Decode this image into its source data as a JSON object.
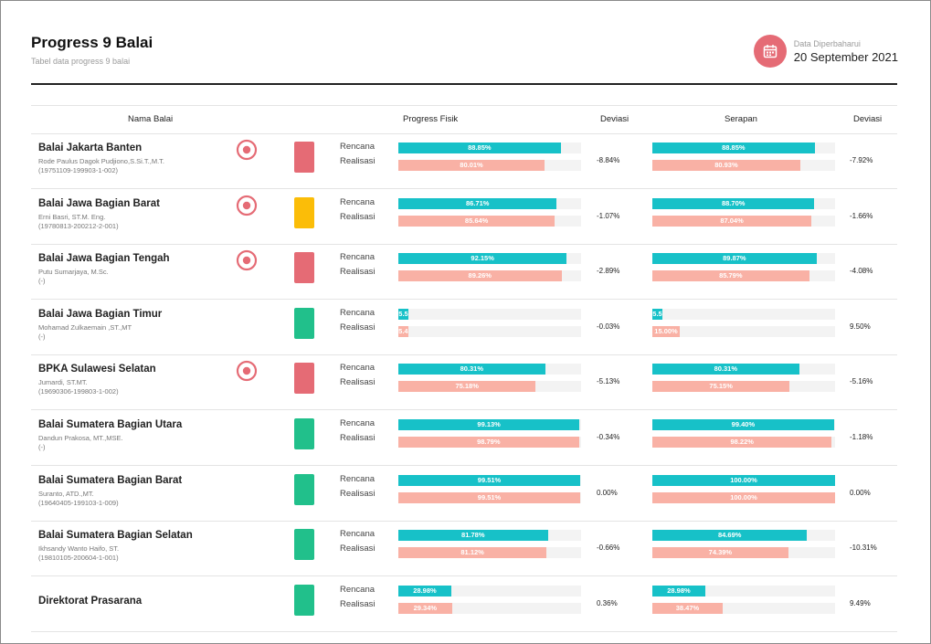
{
  "header": {
    "title": "Progress 9 Balai",
    "subtitle": "Tabel data progress 9 balai",
    "updated_label": "Data Diperbaharui",
    "updated_date": "20 September 2021",
    "calendar_icon": "calendar-icon"
  },
  "columns": {
    "nama_balai": "Nama Balai",
    "progress_fisik": "Progress Fisik",
    "deviasi_fisik": "Deviasi",
    "serapan": "Serapan",
    "deviasi_serapan": "Deviasi"
  },
  "labels": {
    "rencana": "Rencana",
    "realisasi": "Realisasi"
  },
  "colors": {
    "red": "#e56b75",
    "yellow": "#fbbd08",
    "green": "#21c08b",
    "rencana": "#17c1c8",
    "realisasi": "#f9b1a5"
  },
  "rows": [
    {
      "name": "Balai Jakarta Banten",
      "pic": "Rode Paulus Dagok Pudjiono,S.Si.T.,M.T.",
      "nip": "(19751109-199903-1-002)",
      "flag": true,
      "status": "red",
      "fisik_rencana": 88.85,
      "fisik_rencana_label": "88.85%",
      "fisik_realisasi": 80.01,
      "fisik_realisasi_label": "80.01%",
      "fisik_deviasi": "-8.84%",
      "serapan_rencana": 88.85,
      "serapan_rencana_label": "88.85%",
      "serapan_realisasi": 80.93,
      "serapan_realisasi_label": "80.93%",
      "serapan_deviasi": "-7.92%"
    },
    {
      "name": "Balai Jawa Bagian Barat",
      "pic": "Erni Basri, ST.M. Eng.",
      "nip": "(19780813-200212-2-001)",
      "flag": true,
      "status": "yellow",
      "fisik_rencana": 86.71,
      "fisik_rencana_label": "86.71%",
      "fisik_realisasi": 85.64,
      "fisik_realisasi_label": "85.64%",
      "fisik_deviasi": "-1.07%",
      "serapan_rencana": 88.7,
      "serapan_rencana_label": "88.70%",
      "serapan_realisasi": 87.04,
      "serapan_realisasi_label": "87.04%",
      "serapan_deviasi": "-1.66%"
    },
    {
      "name": "Balai Jawa Bagian Tengah",
      "pic": "Putu Sumarjaya, M.Sc.",
      "nip": "(-)",
      "flag": true,
      "status": "red",
      "fisik_rencana": 92.15,
      "fisik_rencana_label": "92.15%",
      "fisik_realisasi": 89.26,
      "fisik_realisasi_label": "89.26%",
      "fisik_deviasi": "-2.89%",
      "serapan_rencana": 89.87,
      "serapan_rencana_label": "89.87%",
      "serapan_realisasi": 85.79,
      "serapan_realisasi_label": "85.79%",
      "serapan_deviasi": "-4.08%"
    },
    {
      "name": "Balai Jawa Bagian Timur",
      "pic": "Mohamad Zulkaemain ,ST.,MT",
      "nip": "(-)",
      "flag": false,
      "status": "green",
      "fisik_rencana": 5.5,
      "fisik_rencana_label": "5.5",
      "fisik_realisasi": 5.4,
      "fisik_realisasi_label": "5.4",
      "fisik_deviasi": "-0.03%",
      "serapan_rencana": 5.5,
      "serapan_rencana_label": "5.5",
      "serapan_realisasi": 15.0,
      "serapan_realisasi_label": "15.00%",
      "serapan_deviasi": "9.50%"
    },
    {
      "name": "BPKA Sulawesi Selatan",
      "pic": "Jumardi, ST.MT.",
      "nip": "(19690306-199803-1-002)",
      "flag": true,
      "status": "red",
      "fisik_rencana": 80.31,
      "fisik_rencana_label": "80.31%",
      "fisik_realisasi": 75.18,
      "fisik_realisasi_label": "75.18%",
      "fisik_deviasi": "-5.13%",
      "serapan_rencana": 80.31,
      "serapan_rencana_label": "80.31%",
      "serapan_realisasi": 75.15,
      "serapan_realisasi_label": "75.15%",
      "serapan_deviasi": "-5.16%"
    },
    {
      "name": "Balai Sumatera Bagian Utara",
      "pic": "Dandun Prakosa, MT.,MSE.",
      "nip": "(-)",
      "flag": false,
      "status": "green",
      "fisik_rencana": 99.13,
      "fisik_rencana_label": "99.13%",
      "fisik_realisasi": 98.79,
      "fisik_realisasi_label": "98.79%",
      "fisik_deviasi": "-0.34%",
      "serapan_rencana": 99.4,
      "serapan_rencana_label": "99.40%",
      "serapan_realisasi": 98.22,
      "serapan_realisasi_label": "98.22%",
      "serapan_deviasi": "-1.18%"
    },
    {
      "name": "Balai Sumatera Bagian Barat",
      "pic": "Suranto, ATD.,MT.",
      "nip": "(19640405-199103-1-009)",
      "flag": false,
      "status": "green",
      "fisik_rencana": 99.51,
      "fisik_rencana_label": "99.51%",
      "fisik_realisasi": 99.51,
      "fisik_realisasi_label": "99.51%",
      "fisik_deviasi": "0.00%",
      "serapan_rencana": 100.0,
      "serapan_rencana_label": "100.00%",
      "serapan_realisasi": 100.0,
      "serapan_realisasi_label": "100.00%",
      "serapan_deviasi": "0.00%"
    },
    {
      "name": "Balai Sumatera Bagian Selatan",
      "pic": "Ikhsandy Wanto Haifo, ST.",
      "nip": "(19810105-200604-1-001)",
      "flag": false,
      "status": "green",
      "fisik_rencana": 81.78,
      "fisik_rencana_label": "81.78%",
      "fisik_realisasi": 81.12,
      "fisik_realisasi_label": "81.12%",
      "fisik_deviasi": "-0.66%",
      "serapan_rencana": 84.69,
      "serapan_rencana_label": "84.69%",
      "serapan_realisasi": 74.39,
      "serapan_realisasi_label": "74.39%",
      "serapan_deviasi": "-10.31%"
    },
    {
      "name": "Direktorat Prasarana",
      "pic": "",
      "nip": "",
      "flag": false,
      "status": "green",
      "fisik_rencana": 28.98,
      "fisik_rencana_label": "28.98%",
      "fisik_realisasi": 29.34,
      "fisik_realisasi_label": "29.34%",
      "fisik_deviasi": "0.36%",
      "serapan_rencana": 28.98,
      "serapan_rencana_label": "28.98%",
      "serapan_realisasi": 38.47,
      "serapan_realisasi_label": "38.47%",
      "serapan_deviasi": "9.49%"
    }
  ]
}
